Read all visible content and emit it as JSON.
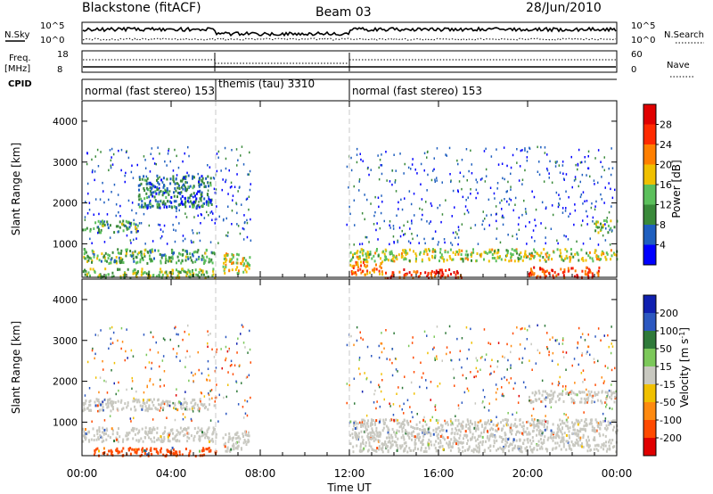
{
  "header": {
    "station": "Blackstone (fitACF)",
    "beam": "Beam 03",
    "date": "28/Jun/2010"
  },
  "panels": {
    "nsky_label": "N.Sky",
    "nsearch_label": "N.Search",
    "nsky_ticks": [
      "10^5",
      "10^0"
    ],
    "nsearch_ticks": [
      "10^5",
      "10^0"
    ],
    "freq_label": "Freq.",
    "freq_unit": "[MHz]",
    "freq_ticks": [
      "18",
      "8"
    ],
    "nave_label": "Nave",
    "nave_ticks": [
      "60",
      "0"
    ],
    "cpid_label": "CPID",
    "cpid_segments": [
      {
        "text": "normal (fast stereo) 153",
        "start_ut": 0,
        "end_ut": 6
      },
      {
        "text": "themis (tau) 3310",
        "start_ut": 6,
        "end_ut": 12
      },
      {
        "text": "normal (fast stereo) 153",
        "start_ut": 12,
        "end_ut": 24
      }
    ]
  },
  "axes": {
    "ylabel": "Slant Range [km]",
    "xlabel": "Time UT",
    "xticks": [
      "00:00",
      "04:00",
      "08:00",
      "12:00",
      "16:00",
      "20:00",
      "00:00"
    ],
    "yticks": [
      "1000",
      "2000",
      "3000",
      "4000"
    ]
  },
  "power_scale": {
    "label": "Power [dB]",
    "ticks": [
      "4",
      "8",
      "12",
      "16",
      "20",
      "24",
      "28"
    ],
    "colors": [
      "#0000ff",
      "#1f5fbf",
      "#3a8a3a",
      "#5cc05c",
      "#f0c000",
      "#ff7f00",
      "#ff2a00",
      "#e00000"
    ]
  },
  "velocity_scale": {
    "label": "Velocity [m s",
    "label_sup": "-1",
    "label_close": "]",
    "ticks": [
      "200",
      "100",
      "50",
      "15",
      "-15",
      "-50",
      "-100",
      "-200"
    ],
    "colors": [
      "#1020b0",
      "#2c58c0",
      "#2f7a3a",
      "#7cc85a",
      "#c8c8c0",
      "#f0c000",
      "#ff8a10",
      "#ff4a00",
      "#e00000"
    ]
  },
  "chart_data": {
    "type": "heatmap",
    "title": "Blackstone (fitACF)   Beam 03   28/Jun/2010",
    "xlabel": "Time UT",
    "ylabel": "Slant Range [km]",
    "xlim_ut_hours": [
      0,
      24
    ],
    "ylim_km": [
      180,
      4500
    ],
    "mode_change_ut_hours": [
      6,
      12
    ],
    "power_regions_db": [
      {
        "t0": 0.0,
        "t1": 6.0,
        "r0": 180,
        "r1": 420,
        "db": 14
      },
      {
        "t0": 0.0,
        "t1": 6.0,
        "r0": 550,
        "r1": 900,
        "db": 12
      },
      {
        "t0": 0.0,
        "t1": 2.5,
        "r0": 1300,
        "r1": 1600,
        "db": 12
      },
      {
        "t0": 2.5,
        "t1": 5.8,
        "r0": 1900,
        "r1": 2700,
        "db": 8
      },
      {
        "t0": 6.3,
        "t1": 7.5,
        "r0": 300,
        "r1": 800,
        "db": 18
      },
      {
        "t0": 12.0,
        "t1": 24.0,
        "r0": 600,
        "r1": 900,
        "db": 16
      },
      {
        "t0": 12.0,
        "t1": 13.5,
        "r0": 250,
        "r1": 600,
        "db": 22
      },
      {
        "t0": 13.5,
        "t1": 17.0,
        "r0": 180,
        "r1": 400,
        "db": 26
      },
      {
        "t0": 20.0,
        "t1": 23.2,
        "r0": 200,
        "r1": 450,
        "db": 26
      },
      {
        "t0": 23.0,
        "t1": 24.0,
        "r0": 1300,
        "r1": 1600,
        "db": 14
      }
    ],
    "velocity_regions_ms": [
      {
        "t0": 0.0,
        "t1": 6.0,
        "r0": 550,
        "r1": 900,
        "v": 0
      },
      {
        "t0": 0.0,
        "t1": 6.0,
        "r0": 1300,
        "r1": 1600,
        "v": 0
      },
      {
        "t0": 0.5,
        "t1": 6.0,
        "r0": 200,
        "r1": 400,
        "v": -150
      },
      {
        "t0": 6.3,
        "t1": 7.5,
        "r0": 300,
        "r1": 800,
        "v": 0
      },
      {
        "t0": 12.0,
        "t1": 24.0,
        "r0": 300,
        "r1": 1100,
        "v": 0
      },
      {
        "t0": 20.0,
        "t1": 24.0,
        "r0": 1500,
        "r1": 1800,
        "v": 0
      }
    ]
  }
}
